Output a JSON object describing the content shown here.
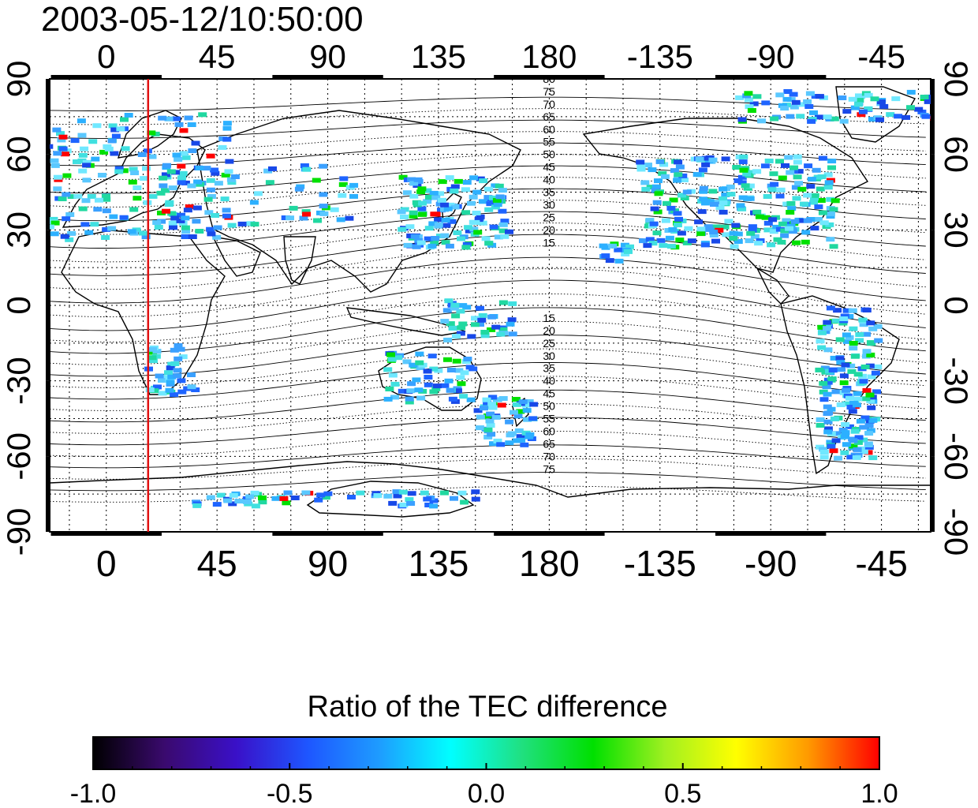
{
  "title": "2003-05-12/10:50:00",
  "map": {
    "lon_ticks": [
      "0",
      "45",
      "90",
      "135",
      "180",
      "-135",
      "-90",
      "-45"
    ],
    "lon_values": [
      0,
      45,
      90,
      135,
      180,
      225,
      270,
      315
    ],
    "lat_ticks": [
      "90",
      "60",
      "30",
      "0",
      "-30",
      "-60",
      "-90"
    ],
    "lat_values": [
      90,
      60,
      30,
      0,
      -30,
      -60,
      -90
    ],
    "lon_range": [
      -23,
      335
    ],
    "lat_range": [
      -90,
      90
    ],
    "grid": true,
    "terminator_longitude": 17,
    "terminator_color": "#e01010",
    "contour_labels_north": [
      "80",
      "75",
      "70",
      "65",
      "60",
      "55",
      "50",
      "45",
      "40",
      "35",
      "30",
      "25",
      "20",
      "15"
    ],
    "contour_labels_south": [
      "15",
      "20",
      "25",
      "30",
      "35",
      "40",
      "45",
      "50",
      "55",
      "60",
      "65",
      "70",
      "75"
    ]
  },
  "colorbar": {
    "title": "Ratio of the TEC difference",
    "tick_labels": [
      "-1.0",
      "-0.5",
      "0.0",
      "0.5",
      "1.0"
    ],
    "tick_values": [
      -1.0,
      -0.5,
      0.0,
      0.5,
      1.0
    ],
    "range": [
      -1.0,
      1.0
    ],
    "colors": [
      "#000000",
      "#3a0a6e",
      "#3a10c8",
      "#1e56ff",
      "#1e9cff",
      "#00ffff",
      "#20e080",
      "#00e000",
      "#a0f020",
      "#ffff00",
      "#ff9a00",
      "#ff0000"
    ]
  }
}
